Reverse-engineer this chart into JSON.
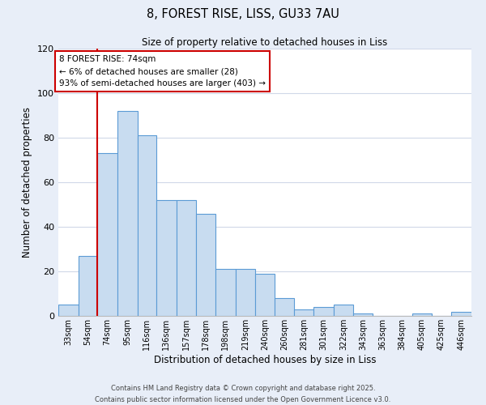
{
  "title": "8, FOREST RISE, LISS, GU33 7AU",
  "subtitle": "Size of property relative to detached houses in Liss",
  "xlabel": "Distribution of detached houses by size in Liss",
  "ylabel": "Number of detached properties",
  "bin_labels": [
    "33sqm",
    "54sqm",
    "74sqm",
    "95sqm",
    "116sqm",
    "136sqm",
    "157sqm",
    "178sqm",
    "198sqm",
    "219sqm",
    "240sqm",
    "260sqm",
    "281sqm",
    "301sqm",
    "322sqm",
    "343sqm",
    "363sqm",
    "384sqm",
    "405sqm",
    "425sqm",
    "446sqm"
  ],
  "bin_counts": [
    5,
    27,
    73,
    92,
    81,
    52,
    52,
    46,
    21,
    21,
    19,
    8,
    3,
    4,
    5,
    1,
    0,
    0,
    1,
    0,
    2
  ],
  "bin_edges": [
    33,
    54,
    74,
    95,
    116,
    136,
    157,
    178,
    198,
    219,
    240,
    260,
    281,
    301,
    322,
    343,
    363,
    384,
    405,
    425,
    446,
    467
  ],
  "bar_color": "#c8dcf0",
  "bar_edge_color": "#5b9bd5",
  "vline_x": 74,
  "vline_color": "#cc0000",
  "ylim": [
    0,
    120
  ],
  "yticks": [
    0,
    20,
    40,
    60,
    80,
    100,
    120
  ],
  "annotation_title": "8 FOREST RISE: 74sqm",
  "annotation_line1": "← 6% of detached houses are smaller (28)",
  "annotation_line2": "93% of semi-detached houses are larger (403) →",
  "annotation_box_color": "#ffffff",
  "annotation_box_edge": "#cc0000",
  "footer1": "Contains HM Land Registry data © Crown copyright and database right 2025.",
  "footer2": "Contains public sector information licensed under the Open Government Licence v3.0.",
  "background_color": "#e8eef8",
  "plot_background_color": "#ffffff",
  "grid_color": "#d0d8e8"
}
